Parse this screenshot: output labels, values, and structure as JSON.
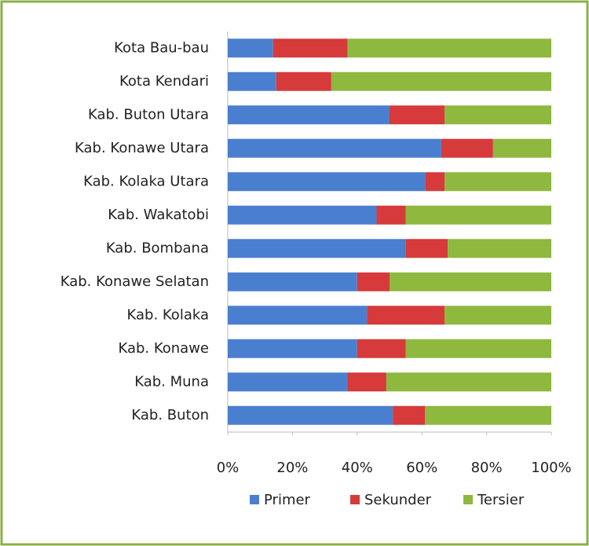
{
  "chart_data": {
    "type": "stacked_barh",
    "categories": [
      "Kota Bau-bau",
      "Kota Kendari",
      "Kab. Buton Utara",
      "Kab. Konawe Utara",
      "Kab. Kolaka Utara",
      "Kab. Wakatobi",
      "Kab. Bombana",
      "Kab. Konawe Selatan",
      "Kab. Kolaka",
      "Kab. Konawe",
      "Kab. Muna",
      "Kab. Buton"
    ],
    "series": [
      {
        "name": "Primer",
        "color": "#4a7fd0",
        "values": [
          14,
          15,
          50,
          66,
          61,
          46,
          55,
          40,
          43,
          40,
          37,
          51
        ]
      },
      {
        "name": "Sekunder",
        "color": "#d63a3a",
        "values": [
          23,
          17,
          17,
          16,
          6,
          9,
          13,
          10,
          24,
          15,
          12,
          10
        ]
      },
      {
        "name": "Tersier",
        "color": "#8fb83e",
        "values": [
          63,
          68,
          33,
          18,
          33,
          45,
          32,
          50,
          33,
          45,
          51,
          39
        ]
      }
    ],
    "xlim": [
      0,
      100
    ],
    "xticks": [
      {
        "value": 0,
        "label": "0%"
      },
      {
        "value": 20,
        "label": "20%"
      },
      {
        "value": 40,
        "label": "40%"
      },
      {
        "value": 60,
        "label": "60%"
      },
      {
        "value": 80,
        "label": "80%"
      },
      {
        "value": 100,
        "label": "100%"
      }
    ],
    "legend": "bottom"
  }
}
